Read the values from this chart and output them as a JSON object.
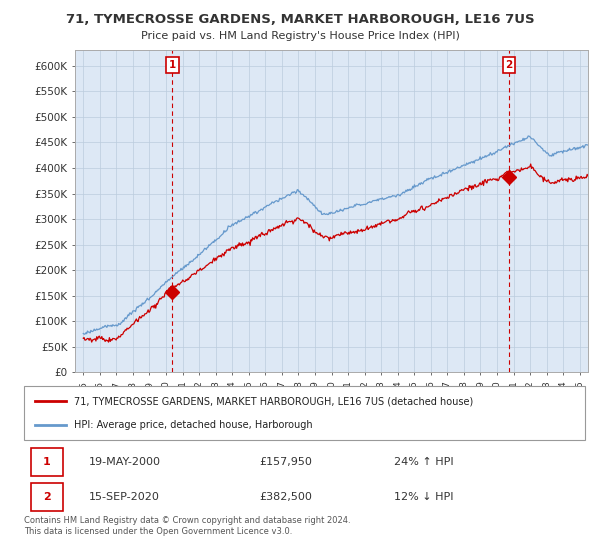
{
  "title": "71, TYMECROSSE GARDENS, MARKET HARBOROUGH, LE16 7US",
  "subtitle": "Price paid vs. HM Land Registry's House Price Index (HPI)",
  "ylim": [
    0,
    630000
  ],
  "yticks": [
    0,
    50000,
    100000,
    150000,
    200000,
    250000,
    300000,
    350000,
    400000,
    450000,
    500000,
    550000,
    600000
  ],
  "xlim_start": 1994.5,
  "xlim_end": 2025.5,
  "legend_entry1": "71, TYMECROSSE GARDENS, MARKET HARBOROUGH, LE16 7US (detached house)",
  "legend_entry2": "HPI: Average price, detached house, Harborough",
  "transaction1_label": "1",
  "transaction1_date": "19-MAY-2000",
  "transaction1_price": "£157,950",
  "transaction1_hpi": "24% ↑ HPI",
  "transaction2_label": "2",
  "transaction2_date": "15-SEP-2020",
  "transaction2_price": "£382,500",
  "transaction2_hpi": "12% ↓ HPI",
  "footer": "Contains HM Land Registry data © Crown copyright and database right 2024.\nThis data is licensed under the Open Government Licence v3.0.",
  "price_color": "#cc0000",
  "hpi_color": "#6699cc",
  "dashed_line_color": "#cc0000",
  "box_color": "#cc0000",
  "chart_bg_color": "#dde8f5",
  "background_color": "#ffffff",
  "grid_color": "#bbccdd",
  "transaction1_year": 2000.38,
  "transaction2_year": 2020.71,
  "sale1_price_value": 157950,
  "sale2_price_value": 382500
}
